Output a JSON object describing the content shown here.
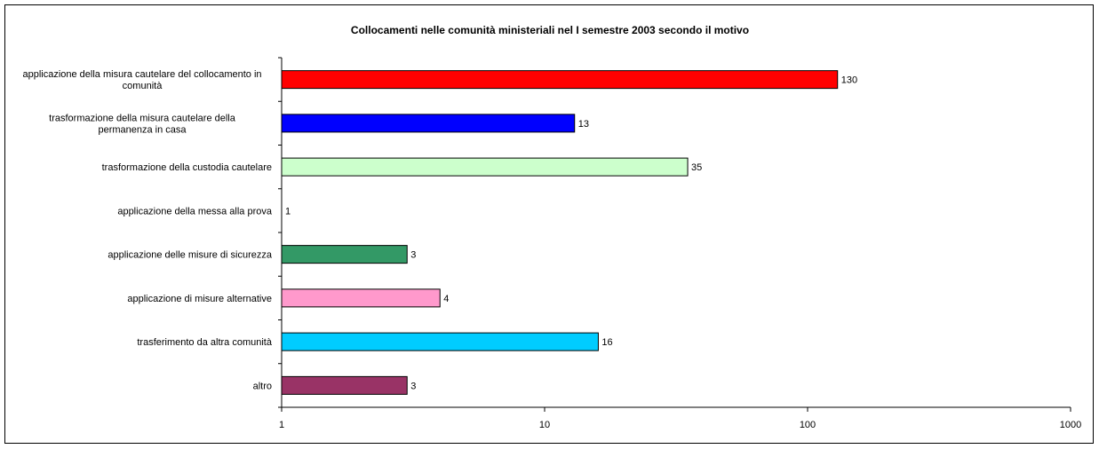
{
  "chart_data": {
    "type": "bar",
    "orientation": "horizontal",
    "title": "Collocamenti nelle comunità ministeriali nel I semestre 2003 secondo il motivo",
    "xscale": "log",
    "xlim": [
      1,
      1000
    ],
    "xticks": [
      "1",
      "10",
      "100",
      "1000"
    ],
    "grid": false,
    "legend": "none",
    "categories": [
      [
        "applicazione della misura cautelare del collocamento in",
        "comunità"
      ],
      [
        "trasformazione della misura cautelare della",
        "permanenza in casa"
      ],
      [
        "trasformazione della custodia cautelare"
      ],
      [
        "applicazione della messa alla prova"
      ],
      [
        "applicazione delle misure di sicurezza"
      ],
      [
        "applicazione di misure alternative"
      ],
      [
        "trasferimento da altra comunità"
      ],
      [
        "altro"
      ]
    ],
    "values": [
      130,
      13,
      35,
      1,
      3,
      4,
      16,
      3
    ],
    "colors": [
      "#ff0000",
      "#0000ff",
      "#ccffcc",
      "#ffffff",
      "#339966",
      "#ff99cc",
      "#00ccff",
      "#993366"
    ]
  }
}
